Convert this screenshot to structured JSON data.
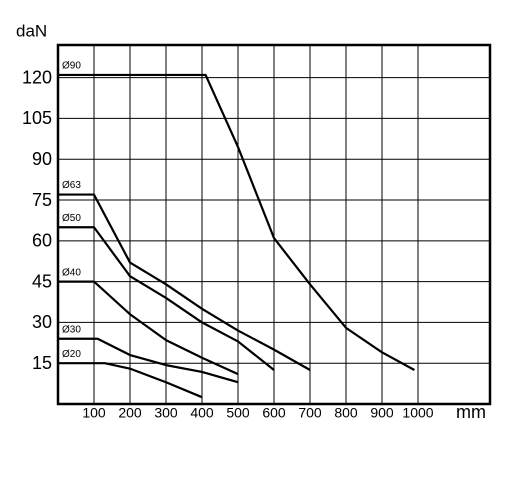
{
  "chart_data": {
    "type": "line",
    "ylabel": "daN",
    "xlabel": "mm",
    "xlim": [
      0,
      1200
    ],
    "ylim": [
      0,
      132
    ],
    "xticks": [
      100,
      200,
      300,
      400,
      500,
      600,
      700,
      800,
      900,
      1000
    ],
    "yticks": [
      15,
      30,
      45,
      60,
      75,
      90,
      105,
      120
    ],
    "grid": true,
    "color": "#000000",
    "series": [
      {
        "name": "Ø90",
        "x": [
          0,
          410,
          500,
          600,
          700,
          800,
          900,
          990
        ],
        "values": [
          121,
          121,
          94.5,
          61,
          44,
          28,
          19,
          12.5
        ]
      },
      {
        "name": "Ø63",
        "x": [
          0,
          100,
          200,
          300,
          400,
          500,
          600,
          700
        ],
        "values": [
          77,
          77,
          52,
          44,
          35,
          27,
          20,
          12.5
        ]
      },
      {
        "name": "Ø50",
        "x": [
          0,
          100,
          200,
          300,
          400,
          500,
          600
        ],
        "values": [
          65,
          65,
          47,
          39,
          30,
          23,
          12.5
        ]
      },
      {
        "name": "Ø40",
        "x": [
          0,
          100,
          200,
          300,
          400,
          500
        ],
        "values": [
          45,
          45,
          33,
          23.5,
          17,
          11
        ]
      },
      {
        "name": "Ø30",
        "x": [
          0,
          110,
          200,
          300,
          400,
          500
        ],
        "values": [
          24,
          24,
          18,
          14.3,
          11.8,
          8
        ]
      },
      {
        "name": "Ø20",
        "x": [
          0,
          130,
          200,
          300,
          400
        ],
        "values": [
          15,
          15,
          13,
          8,
          2.5
        ]
      }
    ]
  }
}
